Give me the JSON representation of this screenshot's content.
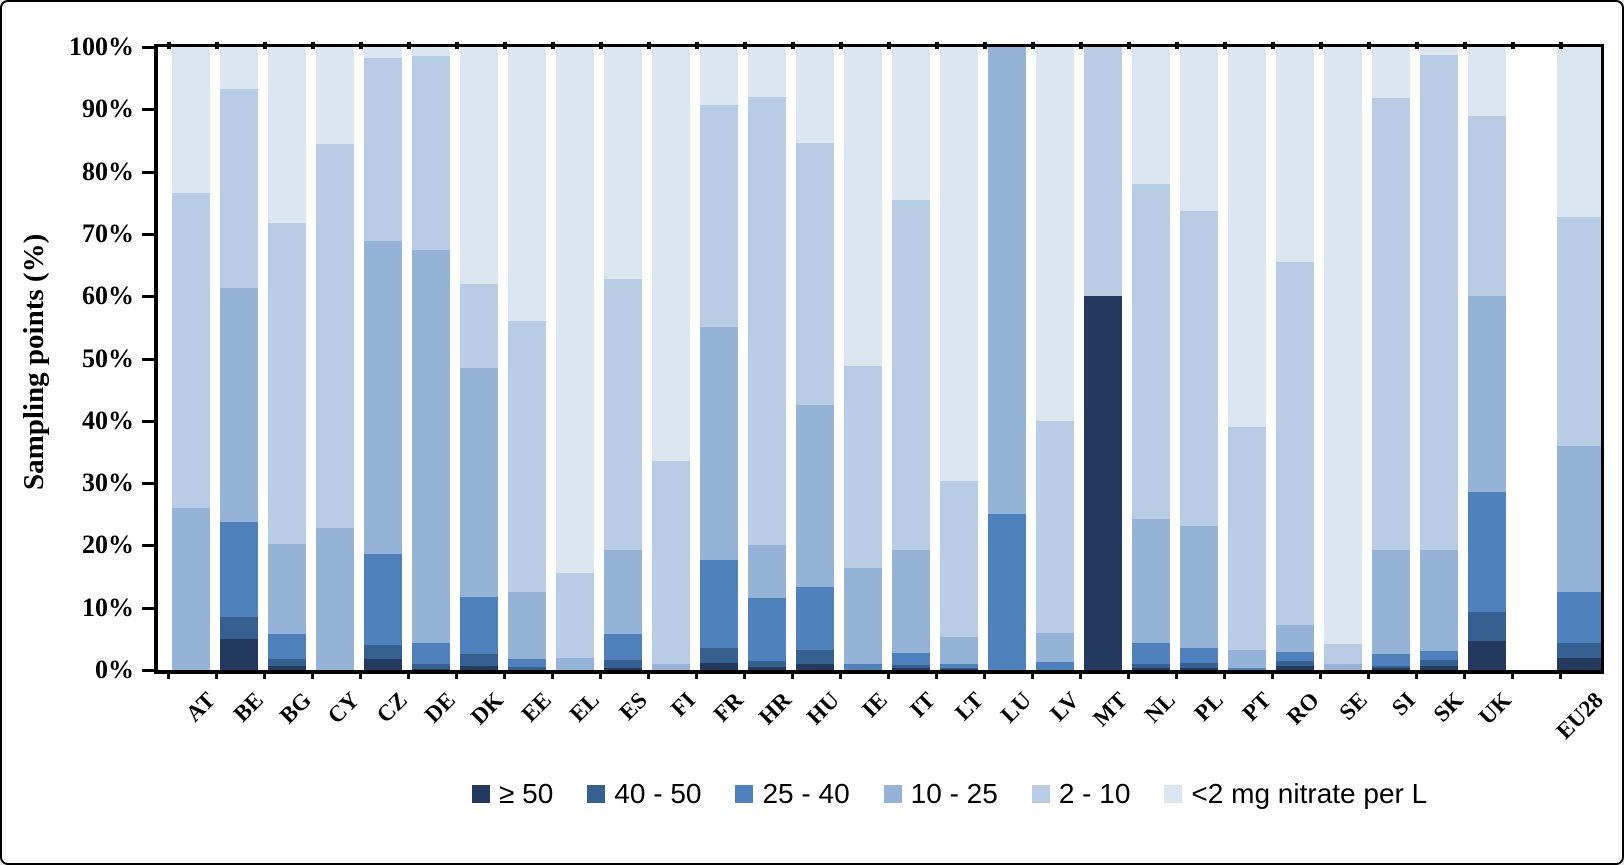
{
  "y_axis": {
    "title": "Sampling points (%)",
    "tick_labels": [
      "0%",
      "10%",
      "20%",
      "30%",
      "40%",
      "50%",
      "60%",
      "70%",
      "80%",
      "90%",
      "100%"
    ],
    "min": 0,
    "max": 100
  },
  "legend": {
    "items": [
      {
        "label": "≥ 50",
        "color": "#24395E"
      },
      {
        "label": "40 - 50",
        "color": "#36608F"
      },
      {
        "label": "25 - 40",
        "color": "#4F81BD"
      },
      {
        "label": "10 - 25",
        "color": "#95B3D7"
      },
      {
        "label": "2 - 10",
        "color": "#B9CCE5"
      },
      {
        "label": "<2 mg nitrate per L",
        "color": "#DCE6F1"
      }
    ]
  },
  "chart_data": {
    "type": "bar",
    "stacked": true,
    "grid": false,
    "legend_position": "bottom",
    "ylabel": "Sampling points (%)",
    "ylim": [
      0,
      100
    ],
    "categories": [
      "AT",
      "BE",
      "BG",
      "CY",
      "CZ",
      "DE",
      "DK",
      "EE",
      "EL",
      "ES",
      "FI",
      "FR",
      "HR",
      "HU",
      "IE",
      "IT",
      "LT",
      "LU",
      "LV",
      "MT",
      "NL",
      "PL",
      "PT",
      "RO",
      "SE",
      "SI",
      "SK",
      "UK",
      "EU28"
    ],
    "series": [
      {
        "name": "≥ 50",
        "color": "#24395E",
        "values": [
          0,
          5.0,
          0.7,
          0,
          1.8,
          0.2,
          0.6,
          0,
          0,
          0.4,
          0,
          1.1,
          0.5,
          0.9,
          0,
          0.3,
          0.2,
          0,
          0,
          60,
          0.4,
          0.3,
          0,
          0.6,
          0,
          0.3,
          0.7,
          4.6,
          2.0
        ]
      },
      {
        "name": "40 - 50",
        "color": "#36608F",
        "values": [
          0,
          3.5,
          1.1,
          0,
          2.2,
          0.7,
          1.9,
          0.5,
          0,
          1.2,
          0,
          2.5,
          0.9,
          2.3,
          0,
          0.5,
          0.2,
          0,
          0,
          0,
          0.6,
          0.8,
          0,
          0.8,
          0,
          0.3,
          0.9,
          4.7,
          2.3
        ]
      },
      {
        "name": "25 - 40",
        "color": "#4F81BD",
        "values": [
          0,
          15.3,
          4.0,
          0,
          14.6,
          3.5,
          9.3,
          1.3,
          0,
          4.2,
          0,
          14.1,
          10.1,
          10.2,
          1.0,
          2.0,
          0.5,
          25.0,
          1.3,
          0,
          3.3,
          2.5,
          0.4,
          1.5,
          0,
          2.0,
          1.4,
          19.2,
          8.2
        ]
      },
      {
        "name": "10 - 25",
        "color": "#95B3D7",
        "values": [
          26.0,
          37.6,
          14.5,
          22.8,
          50.2,
          63.0,
          36.6,
          10.7,
          2.0,
          13.4,
          1.0,
          37.3,
          8.5,
          29.1,
          15.3,
          16.4,
          4.4,
          75.0,
          4.7,
          0,
          19.9,
          19.6,
          2.8,
          4.3,
          0.9,
          16.7,
          16.3,
          31.5,
          23.5
        ]
      },
      {
        "name": "2 - 10",
        "color": "#B9CCE5",
        "values": [
          50.5,
          31.9,
          51.4,
          61.7,
          29.4,
          31.2,
          13.6,
          43.5,
          13.6,
          43.6,
          32.5,
          35.7,
          72.0,
          42.1,
          32.5,
          56.3,
          25.0,
          0,
          34.0,
          40.0,
          53.8,
          50.5,
          35.8,
          58.3,
          3.3,
          72.5,
          79.5,
          29.0,
          36.8
        ]
      },
      {
        "name": "<2 mg nitrate per L",
        "color": "#DCE6F1",
        "values": [
          23.5,
          6.7,
          28.3,
          15.5,
          1.8,
          1.4,
          38.0,
          44.0,
          84.4,
          37.2,
          66.5,
          9.3,
          8.0,
          15.4,
          51.2,
          24.5,
          69.7,
          0,
          60.0,
          0,
          22.0,
          26.3,
          61.0,
          34.5,
          95.8,
          8.2,
          1.2,
          11.0,
          27.2
        ]
      }
    ]
  }
}
